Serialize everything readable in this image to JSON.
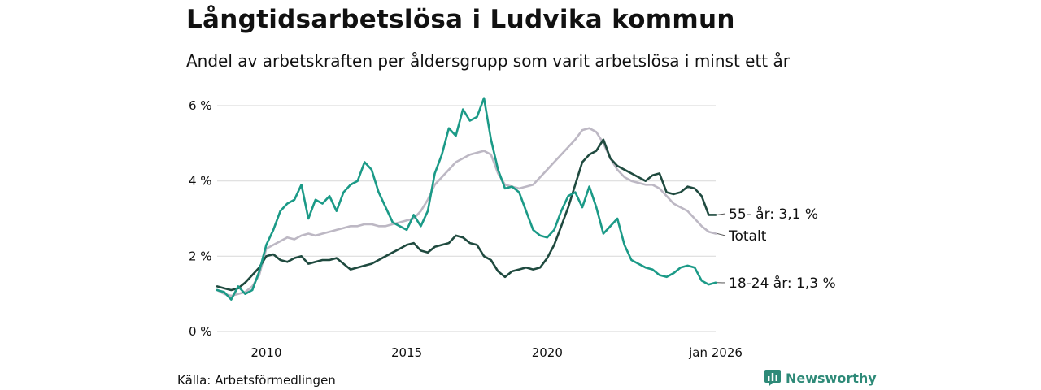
{
  "header": {
    "title": "Långtidsarbetslösa i Ludvika kommun",
    "subtitle": "Andel av arbetskraften per åldersgrupp som varit arbetslösa i minst ett år"
  },
  "footer": {
    "source": "Källa: Arbetsförmedlingen",
    "brand": "Newsworthy"
  },
  "colors": {
    "youth": "#1b9a87",
    "senior": "#1f4a3f",
    "total": "#bdb8c4",
    "grid": "#dddddd"
  },
  "chart_data": {
    "type": "line",
    "title": "Långtidsarbetslösa i Ludvika kommun",
    "subtitle": "Andel av arbetskraften per åldersgrupp som varit arbetslösa i minst ett år",
    "xlabel": "",
    "ylabel": "",
    "xlim": [
      2008.25,
      2026.0
    ],
    "ylim": [
      0,
      6
    ],
    "y_ticks": [
      0,
      2,
      4,
      6
    ],
    "y_tick_labels": [
      "0 %",
      "2 %",
      "4 %",
      "6 %"
    ],
    "x_ticks": [
      2010,
      2015,
      2020,
      2026
    ],
    "x_tick_labels": [
      "2010",
      "2015",
      "2020",
      "jan 2026"
    ],
    "grid": true,
    "series": [
      {
        "key": "total",
        "name": "Totalt",
        "end_label": "Totalt",
        "x": [
          2008.25,
          2008.5,
          2008.75,
          2009.0,
          2009.25,
          2009.5,
          2009.75,
          2010.0,
          2010.25,
          2010.5,
          2010.75,
          2011.0,
          2011.25,
          2011.5,
          2011.75,
          2012.0,
          2012.25,
          2012.5,
          2012.75,
          2013.0,
          2013.25,
          2013.5,
          2013.75,
          2014.0,
          2014.25,
          2014.5,
          2014.75,
          2015.0,
          2015.25,
          2015.5,
          2015.75,
          2016.0,
          2016.25,
          2016.5,
          2016.75,
          2017.0,
          2017.25,
          2017.5,
          2017.75,
          2018.0,
          2018.25,
          2018.5,
          2018.75,
          2019.0,
          2019.25,
          2019.5,
          2019.75,
          2020.0,
          2020.25,
          2020.5,
          2020.75,
          2021.0,
          2021.25,
          2021.5,
          2021.75,
          2022.0,
          2022.25,
          2022.5,
          2022.75,
          2023.0,
          2023.25,
          2023.5,
          2023.75,
          2024.0,
          2024.25,
          2024.5,
          2024.75,
          2025.0,
          2025.25,
          2025.5,
          2025.75,
          2026.0
        ],
        "values": [
          1.1,
          1.0,
          0.95,
          1.0,
          1.05,
          1.2,
          1.5,
          2.2,
          2.3,
          2.4,
          2.5,
          2.45,
          2.55,
          2.6,
          2.55,
          2.6,
          2.65,
          2.7,
          2.75,
          2.8,
          2.8,
          2.85,
          2.85,
          2.8,
          2.8,
          2.85,
          2.9,
          2.95,
          3.0,
          3.2,
          3.5,
          3.9,
          4.1,
          4.3,
          4.5,
          4.6,
          4.7,
          4.75,
          4.8,
          4.7,
          4.2,
          3.9,
          3.85,
          3.8,
          3.85,
          3.9,
          4.1,
          4.3,
          4.5,
          4.7,
          4.9,
          5.1,
          5.35,
          5.4,
          5.3,
          5.0,
          4.6,
          4.3,
          4.1,
          4.0,
          3.95,
          3.9,
          3.9,
          3.8,
          3.6,
          3.4,
          3.3,
          3.2,
          3.0,
          2.8,
          2.65,
          2.6
        ]
      },
      {
        "key": "senior",
        "name": "55- år",
        "end_label": "55- år: 3,1 %",
        "x": [
          2008.25,
          2008.5,
          2008.75,
          2009.0,
          2009.25,
          2009.5,
          2009.75,
          2010.0,
          2010.25,
          2010.5,
          2010.75,
          2011.0,
          2011.25,
          2011.5,
          2011.75,
          2012.0,
          2012.25,
          2012.5,
          2012.75,
          2013.0,
          2013.25,
          2013.5,
          2013.75,
          2014.0,
          2014.25,
          2014.5,
          2014.75,
          2015.0,
          2015.25,
          2015.5,
          2015.75,
          2016.0,
          2016.25,
          2016.5,
          2016.75,
          2017.0,
          2017.25,
          2017.5,
          2017.75,
          2018.0,
          2018.25,
          2018.5,
          2018.75,
          2019.0,
          2019.25,
          2019.5,
          2019.75,
          2020.0,
          2020.25,
          2020.5,
          2020.75,
          2021.0,
          2021.25,
          2021.5,
          2021.75,
          2022.0,
          2022.25,
          2022.5,
          2022.75,
          2023.0,
          2023.25,
          2023.5,
          2023.75,
          2024.0,
          2024.25,
          2024.5,
          2024.75,
          2025.0,
          2025.25,
          2025.5,
          2025.75,
          2026.0
        ],
        "values": [
          1.2,
          1.15,
          1.1,
          1.15,
          1.3,
          1.5,
          1.7,
          2.0,
          2.05,
          1.9,
          1.85,
          1.95,
          2.0,
          1.8,
          1.85,
          1.9,
          1.9,
          1.95,
          1.8,
          1.65,
          1.7,
          1.75,
          1.8,
          1.9,
          2.0,
          2.1,
          2.2,
          2.3,
          2.35,
          2.15,
          2.1,
          2.25,
          2.3,
          2.35,
          2.55,
          2.5,
          2.35,
          2.3,
          2.0,
          1.9,
          1.6,
          1.45,
          1.6,
          1.65,
          1.7,
          1.65,
          1.7,
          1.95,
          2.3,
          2.8,
          3.3,
          3.9,
          4.5,
          4.7,
          4.8,
          5.1,
          4.6,
          4.4,
          4.3,
          4.2,
          4.1,
          4.0,
          4.15,
          4.2,
          3.7,
          3.65,
          3.7,
          3.85,
          3.8,
          3.6,
          3.1,
          3.1
        ]
      },
      {
        "key": "youth",
        "name": "18-24 år",
        "end_label": "18-24 år: 1,3 %",
        "x": [
          2008.25,
          2008.5,
          2008.75,
          2009.0,
          2009.25,
          2009.5,
          2009.75,
          2010.0,
          2010.25,
          2010.5,
          2010.75,
          2011.0,
          2011.25,
          2011.5,
          2011.75,
          2012.0,
          2012.25,
          2012.5,
          2012.75,
          2013.0,
          2013.25,
          2013.5,
          2013.75,
          2014.0,
          2014.25,
          2014.5,
          2014.75,
          2015.0,
          2015.25,
          2015.5,
          2015.75,
          2016.0,
          2016.25,
          2016.5,
          2016.75,
          2017.0,
          2017.25,
          2017.5,
          2017.75,
          2018.0,
          2018.25,
          2018.5,
          2018.75,
          2019.0,
          2019.25,
          2019.5,
          2019.75,
          2020.0,
          2020.25,
          2020.5,
          2020.75,
          2021.0,
          2021.25,
          2021.5,
          2021.75,
          2022.0,
          2022.25,
          2022.5,
          2022.75,
          2023.0,
          2023.25,
          2023.5,
          2023.75,
          2024.0,
          2024.25,
          2024.5,
          2024.75,
          2025.0,
          2025.25,
          2025.5,
          2025.75,
          2026.0
        ],
        "values": [
          1.1,
          1.05,
          0.85,
          1.2,
          1.0,
          1.1,
          1.6,
          2.3,
          2.7,
          3.2,
          3.4,
          3.5,
          3.9,
          3.0,
          3.5,
          3.4,
          3.6,
          3.2,
          3.7,
          3.9,
          4.0,
          4.5,
          4.3,
          3.7,
          3.3,
          2.9,
          2.8,
          2.7,
          3.1,
          2.8,
          3.2,
          4.2,
          4.7,
          5.4,
          5.2,
          5.9,
          5.6,
          5.7,
          6.2,
          5.1,
          4.3,
          3.8,
          3.85,
          3.7,
          3.2,
          2.7,
          2.55,
          2.5,
          2.7,
          3.2,
          3.6,
          3.7,
          3.3,
          3.85,
          3.3,
          2.6,
          2.8,
          3.0,
          2.3,
          1.9,
          1.8,
          1.7,
          1.65,
          1.5,
          1.45,
          1.55,
          1.7,
          1.75,
          1.7,
          1.35,
          1.25,
          1.3
        ]
      }
    ]
  }
}
